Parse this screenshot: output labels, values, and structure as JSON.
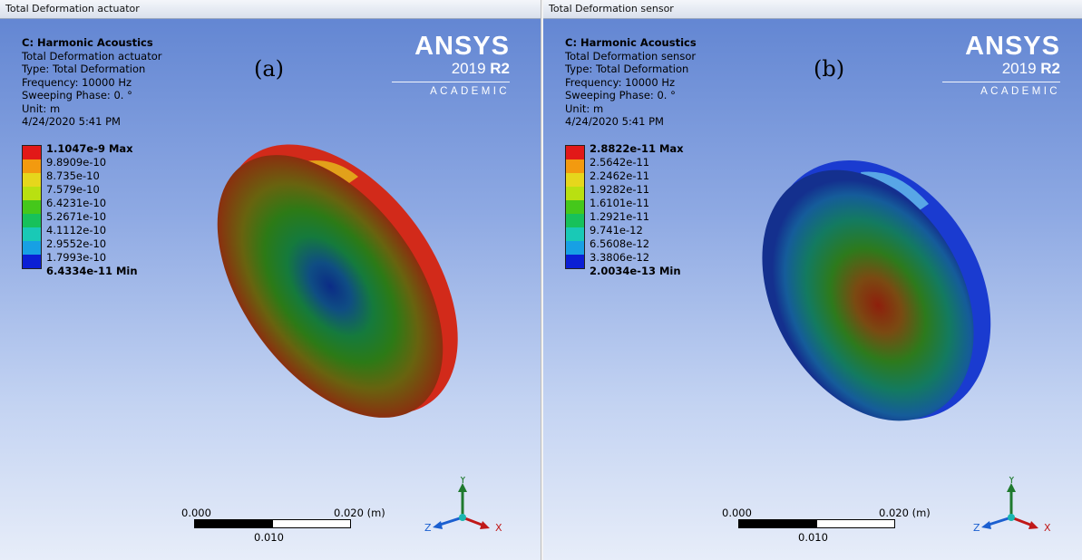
{
  "colors": {
    "legend_bands": [
      "#e21818",
      "#f39a0f",
      "#e6d71c",
      "#b9e011",
      "#45c81b",
      "#17c15b",
      "#19c9b6",
      "#17a0e4",
      "#0b1fd5"
    ]
  },
  "panels": [
    {
      "window_title": "Total Deformation actuator",
      "info": [
        "C: Harmonic Acoustics",
        "Total Deformation actuator",
        "Type: Total Deformation",
        "Frequency: 10000 Hz",
        "Sweeping Phase: 0. °",
        "Unit: m",
        "4/24/2020 5:41 PM"
      ],
      "figure_label": "(a)",
      "logo": {
        "brand": "ANSYS",
        "year": "2019",
        "release": "R2",
        "edition": "ACADEMIC"
      },
      "legend": [
        "1.1047e-9 Max",
        "9.8909e-10",
        "8.735e-10",
        "7.579e-10",
        "6.4231e-10",
        "5.2671e-10",
        "4.1112e-10",
        "2.9552e-10",
        "1.7993e-10",
        "6.4334e-11 Min"
      ],
      "scale": {
        "left": "0.000",
        "right": "0.020 (m)",
        "mid": "0.010"
      },
      "axes": {
        "x": "X",
        "y": "Y",
        "z": "Z"
      }
    },
    {
      "window_title": "Total Deformation sensor",
      "info": [
        "C: Harmonic Acoustics",
        "Total Deformation sensor",
        "Type: Total Deformation",
        "Frequency: 10000 Hz",
        "Sweeping Phase: 0. °",
        "Unit: m",
        "4/24/2020 5:41 PM"
      ],
      "figure_label": "(b)",
      "logo": {
        "brand": "ANSYS",
        "year": "2019",
        "release": "R2",
        "edition": "ACADEMIC"
      },
      "legend": [
        "2.8822e-11 Max",
        "2.5642e-11",
        "2.2462e-11",
        "1.9282e-11",
        "1.6101e-11",
        "1.2921e-11",
        "9.741e-12",
        "6.5608e-12",
        "3.3806e-12",
        "2.0034e-13 Min"
      ],
      "scale": {
        "left": "0.000",
        "right": "0.020 (m)",
        "mid": "0.010"
      },
      "axes": {
        "x": "X",
        "y": "Y",
        "z": "Z"
      }
    }
  ]
}
